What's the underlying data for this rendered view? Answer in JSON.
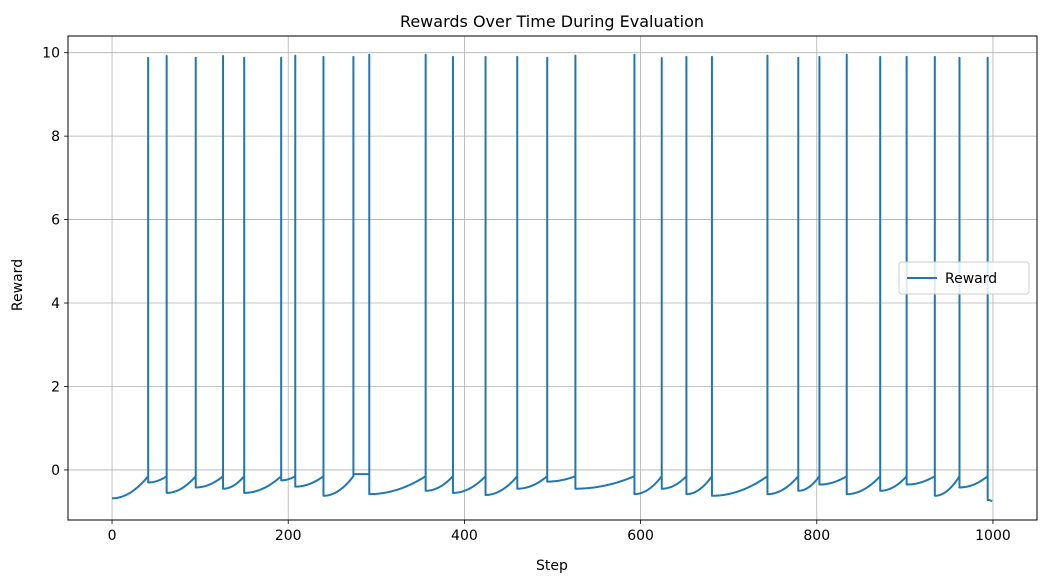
{
  "chart_data": {
    "type": "line",
    "title": "Rewards Over Time During Evaluation",
    "xlabel": "Step",
    "ylabel": "Reward",
    "xlim": [
      -50,
      1050
    ],
    "ylim": [
      -1.2,
      10.4
    ],
    "xticks": [
      0,
      200,
      400,
      600,
      800,
      1000
    ],
    "yticks": [
      0,
      2,
      4,
      6,
      8,
      10
    ],
    "grid": true,
    "legend_position": "center-right",
    "series": [
      {
        "name": "Reward",
        "color": "#1f77b4",
        "episodes": [
          {
            "start": 0,
            "end": 41,
            "y0": -0.68,
            "y1": -0.15,
            "spike": 9.88
          },
          {
            "start": 41,
            "end": 62,
            "y0": -0.3,
            "y1": -0.15,
            "spike": 9.92
          },
          {
            "start": 62,
            "end": 95,
            "y0": -0.55,
            "y1": -0.15,
            "spike": 9.88
          },
          {
            "start": 95,
            "end": 126,
            "y0": -0.42,
            "y1": -0.15,
            "spike": 9.92
          },
          {
            "start": 126,
            "end": 150,
            "y0": -0.45,
            "y1": -0.15,
            "spike": 9.88
          },
          {
            "start": 150,
            "end": 192,
            "y0": -0.55,
            "y1": -0.15,
            "spike": 9.88
          },
          {
            "start": 192,
            "end": 208,
            "y0": -0.25,
            "y1": -0.15,
            "spike": 9.93
          },
          {
            "start": 208,
            "end": 240,
            "y0": -0.4,
            "y1": -0.15,
            "spike": 9.9
          },
          {
            "start": 240,
            "end": 274,
            "y0": -0.62,
            "y1": -0.15,
            "spike": 9.9
          },
          {
            "start": 274,
            "end": 292,
            "y0": -0.1,
            "y1": -0.1,
            "spike": 9.95
          },
          {
            "start": 292,
            "end": 356,
            "y0": -0.58,
            "y1": -0.15,
            "spike": 9.95
          },
          {
            "start": 356,
            "end": 387,
            "y0": -0.5,
            "y1": -0.15,
            "spike": 9.9
          },
          {
            "start": 387,
            "end": 424,
            "y0": -0.55,
            "y1": -0.15,
            "spike": 9.9
          },
          {
            "start": 424,
            "end": 460,
            "y0": -0.6,
            "y1": -0.15,
            "spike": 9.9
          },
          {
            "start": 460,
            "end": 494,
            "y0": -0.45,
            "y1": -0.15,
            "spike": 9.88
          },
          {
            "start": 494,
            "end": 526,
            "y0": -0.28,
            "y1": -0.15,
            "spike": 9.93
          },
          {
            "start": 526,
            "end": 593,
            "y0": -0.45,
            "y1": -0.15,
            "spike": 9.95
          },
          {
            "start": 593,
            "end": 624,
            "y0": -0.58,
            "y1": -0.15,
            "spike": 9.87
          },
          {
            "start": 624,
            "end": 652,
            "y0": -0.45,
            "y1": -0.15,
            "spike": 9.9
          },
          {
            "start": 652,
            "end": 681,
            "y0": -0.58,
            "y1": -0.15,
            "spike": 9.9
          },
          {
            "start": 681,
            "end": 744,
            "y0": -0.62,
            "y1": -0.15,
            "spike": 9.93
          },
          {
            "start": 744,
            "end": 779,
            "y0": -0.58,
            "y1": -0.15,
            "spike": 9.88
          },
          {
            "start": 779,
            "end": 803,
            "y0": -0.5,
            "y1": -0.15,
            "spike": 9.9
          },
          {
            "start": 803,
            "end": 834,
            "y0": -0.35,
            "y1": -0.15,
            "spike": 9.95
          },
          {
            "start": 834,
            "end": 872,
            "y0": -0.58,
            "y1": -0.15,
            "spike": 9.9
          },
          {
            "start": 872,
            "end": 902,
            "y0": -0.5,
            "y1": -0.15,
            "spike": 9.9
          },
          {
            "start": 902,
            "end": 934,
            "y0": -0.35,
            "y1": -0.15,
            "spike": 9.9
          },
          {
            "start": 934,
            "end": 962,
            "y0": -0.62,
            "y1": -0.15,
            "spike": 9.88
          },
          {
            "start": 962,
            "end": 994,
            "y0": -0.42,
            "y1": -0.15,
            "spike": 9.88
          },
          {
            "start": 994,
            "end": 999,
            "y0": -0.72,
            "y1": -0.75,
            "spike": null
          }
        ]
      }
    ]
  }
}
